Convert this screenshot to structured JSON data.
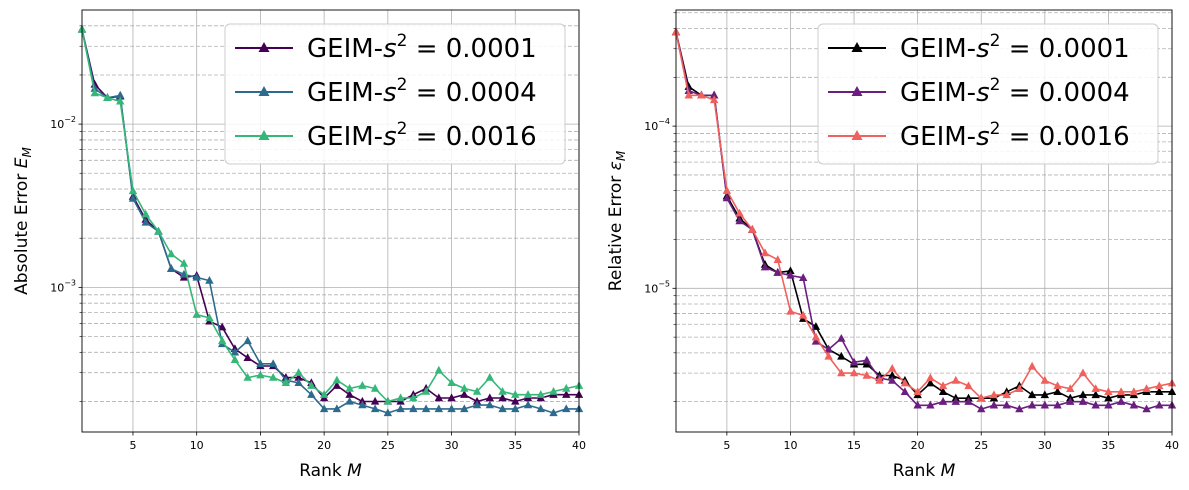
{
  "chart_data": [
    {
      "type": "line",
      "xlabel": "Rank M",
      "ylabel": "Absolute Error E_M",
      "xscale": "linear",
      "yscale": "log",
      "xlim": [
        1,
        40
      ],
      "ylim": [
        0.00013,
        0.05
      ],
      "x_ticks": [
        5,
        10,
        15,
        20,
        25,
        30,
        35,
        40
      ],
      "y_ticks": [
        {
          "value": 0.001,
          "base": "10",
          "exp": "−3"
        },
        {
          "value": 0.01,
          "base": "10",
          "exp": "−2"
        }
      ],
      "grid": true,
      "legend_position": "upper right",
      "x": [
        1,
        2,
        3,
        4,
        5,
        6,
        7,
        8,
        9,
        10,
        11,
        12,
        13,
        14,
        15,
        16,
        17,
        18,
        19,
        20,
        21,
        22,
        23,
        24,
        25,
        26,
        27,
        28,
        29,
        30,
        31,
        32,
        33,
        34,
        35,
        36,
        37,
        38,
        39,
        40
      ],
      "series": [
        {
          "name": "GEIM-s² = 0.0001",
          "color": "#440154",
          "values": [
            0.038,
            0.0175,
            0.0145,
            0.0148,
            0.0036,
            0.0026,
            0.0022,
            0.0013,
            0.00115,
            0.00118,
            0.00062,
            0.00057,
            0.00042,
            0.00037,
            0.00033,
            0.00033,
            0.00028,
            0.00028,
            0.00026,
            0.00021,
            0.00025,
            0.00022,
            0.0002,
            0.0002,
            0.0002,
            0.0002,
            0.00022,
            0.00024,
            0.00021,
            0.00021,
            0.00022,
            0.0002,
            0.00021,
            0.00021,
            0.0002,
            0.00021,
            0.00021,
            0.00022,
            0.00022,
            0.00022
          ]
        },
        {
          "name": "GEIM-s² = 0.0004",
          "color": "#2c6b8e",
          "values": [
            0.038,
            0.0165,
            0.0145,
            0.015,
            0.0035,
            0.0025,
            0.0022,
            0.0013,
            0.0012,
            0.00115,
            0.0011,
            0.00045,
            0.0004,
            0.00047,
            0.00034,
            0.00034,
            0.00027,
            0.00026,
            0.00022,
            0.00018,
            0.00018,
            0.0002,
            0.00019,
            0.00018,
            0.00017,
            0.00018,
            0.00018,
            0.00018,
            0.00018,
            0.00018,
            0.00018,
            0.00019,
            0.00019,
            0.00018,
            0.00018,
            0.00019,
            0.00018,
            0.00017,
            0.00018,
            0.00018
          ]
        },
        {
          "name": "GEIM-s² = 0.0016",
          "color": "#35b779",
          "values": [
            0.038,
            0.0155,
            0.0145,
            0.0138,
            0.0039,
            0.0028,
            0.0022,
            0.0016,
            0.0014,
            0.00068,
            0.00065,
            0.00047,
            0.00036,
            0.00028,
            0.00029,
            0.00028,
            0.00026,
            0.0003,
            0.00025,
            0.00022,
            0.00027,
            0.00024,
            0.00025,
            0.00024,
            0.0002,
            0.00021,
            0.00021,
            0.00023,
            0.00031,
            0.00026,
            0.00024,
            0.00023,
            0.00028,
            0.00023,
            0.00022,
            0.00022,
            0.00022,
            0.00023,
            0.00024,
            0.00025
          ]
        }
      ]
    },
    {
      "type": "line",
      "xlabel": "Rank M",
      "ylabel": "Relative Error ε_M",
      "xscale": "linear",
      "yscale": "log",
      "xlim": [
        1,
        40
      ],
      "ylim": [
        1.3e-06,
        0.00052
      ],
      "x_ticks": [
        5,
        10,
        15,
        20,
        25,
        30,
        35,
        40
      ],
      "y_ticks": [
        {
          "value": 1e-05,
          "base": "10",
          "exp": "−5"
        },
        {
          "value": 0.0001,
          "base": "10",
          "exp": "−4"
        }
      ],
      "grid": true,
      "legend_position": "upper right",
      "x": [
        1,
        2,
        3,
        4,
        5,
        6,
        7,
        8,
        9,
        10,
        11,
        12,
        13,
        14,
        15,
        16,
        17,
        18,
        19,
        20,
        21,
        22,
        23,
        24,
        25,
        26,
        27,
        28,
        29,
        30,
        31,
        32,
        33,
        34,
        35,
        36,
        37,
        38,
        39,
        40
      ],
      "series": [
        {
          "name": "GEIM-s² = 0.0001",
          "color": "#000000",
          "values": [
            0.00038,
            0.000175,
            0.000155,
            0.000155,
            3.7e-05,
            2.7e-05,
            2.3e-05,
            1.4e-05,
            1.25e-05,
            1.28e-05,
            6.5e-06,
            5.8e-06,
            4.2e-06,
            3.8e-06,
            3.4e-06,
            3.4e-06,
            2.9e-06,
            2.9e-06,
            2.7e-06,
            2.2e-06,
            2.6e-06,
            2.3e-06,
            2.1e-06,
            2.1e-06,
            2.1e-06,
            2.1e-06,
            2.3e-06,
            2.5e-06,
            2.2e-06,
            2.2e-06,
            2.3e-06,
            2.1e-06,
            2.2e-06,
            2.2e-06,
            2.1e-06,
            2.2e-06,
            2.2e-06,
            2.3e-06,
            2.3e-06,
            2.3e-06
          ]
        },
        {
          "name": "GEIM-s² = 0.0004",
          "color": "#6a1f7f",
          "values": [
            0.00038,
            0.000165,
            0.000155,
            0.000155,
            3.6e-05,
            2.6e-05,
            2.3e-05,
            1.35e-05,
            1.25e-05,
            1.2e-05,
            1.16e-05,
            4.7e-06,
            4.2e-06,
            4.9e-06,
            3.5e-06,
            3.6e-06,
            2.8e-06,
            2.7e-06,
            2.3e-06,
            1.9e-06,
            1.9e-06,
            2e-06,
            2e-06,
            2e-06,
            1.8e-06,
            1.9e-06,
            1.9e-06,
            1.8e-06,
            1.9e-06,
            1.9e-06,
            1.9e-06,
            2e-06,
            2e-06,
            1.9e-06,
            1.9e-06,
            2e-06,
            1.9e-06,
            1.8e-06,
            1.9e-06,
            1.9e-06
          ]
        },
        {
          "name": "GEIM-s² = 0.0016",
          "color": "#f0605d",
          "values": [
            0.00038,
            0.000155,
            0.000155,
            0.000145,
            4e-05,
            2.9e-05,
            2.3e-05,
            1.65e-05,
            1.5e-05,
            7.2e-06,
            6.8e-06,
            5e-06,
            3.8e-06,
            3e-06,
            3e-06,
            2.9e-06,
            2.7e-06,
            3.2e-06,
            2.6e-06,
            2.3e-06,
            2.8e-06,
            2.5e-06,
            2.7e-06,
            2.5e-06,
            2.1e-06,
            2.2e-06,
            2.2e-06,
            2.4e-06,
            3.3e-06,
            2.7e-06,
            2.5e-06,
            2.4e-06,
            3e-06,
            2.4e-06,
            2.3e-06,
            2.3e-06,
            2.3e-06,
            2.4e-06,
            2.5e-06,
            2.6e-06
          ]
        }
      ]
    }
  ]
}
